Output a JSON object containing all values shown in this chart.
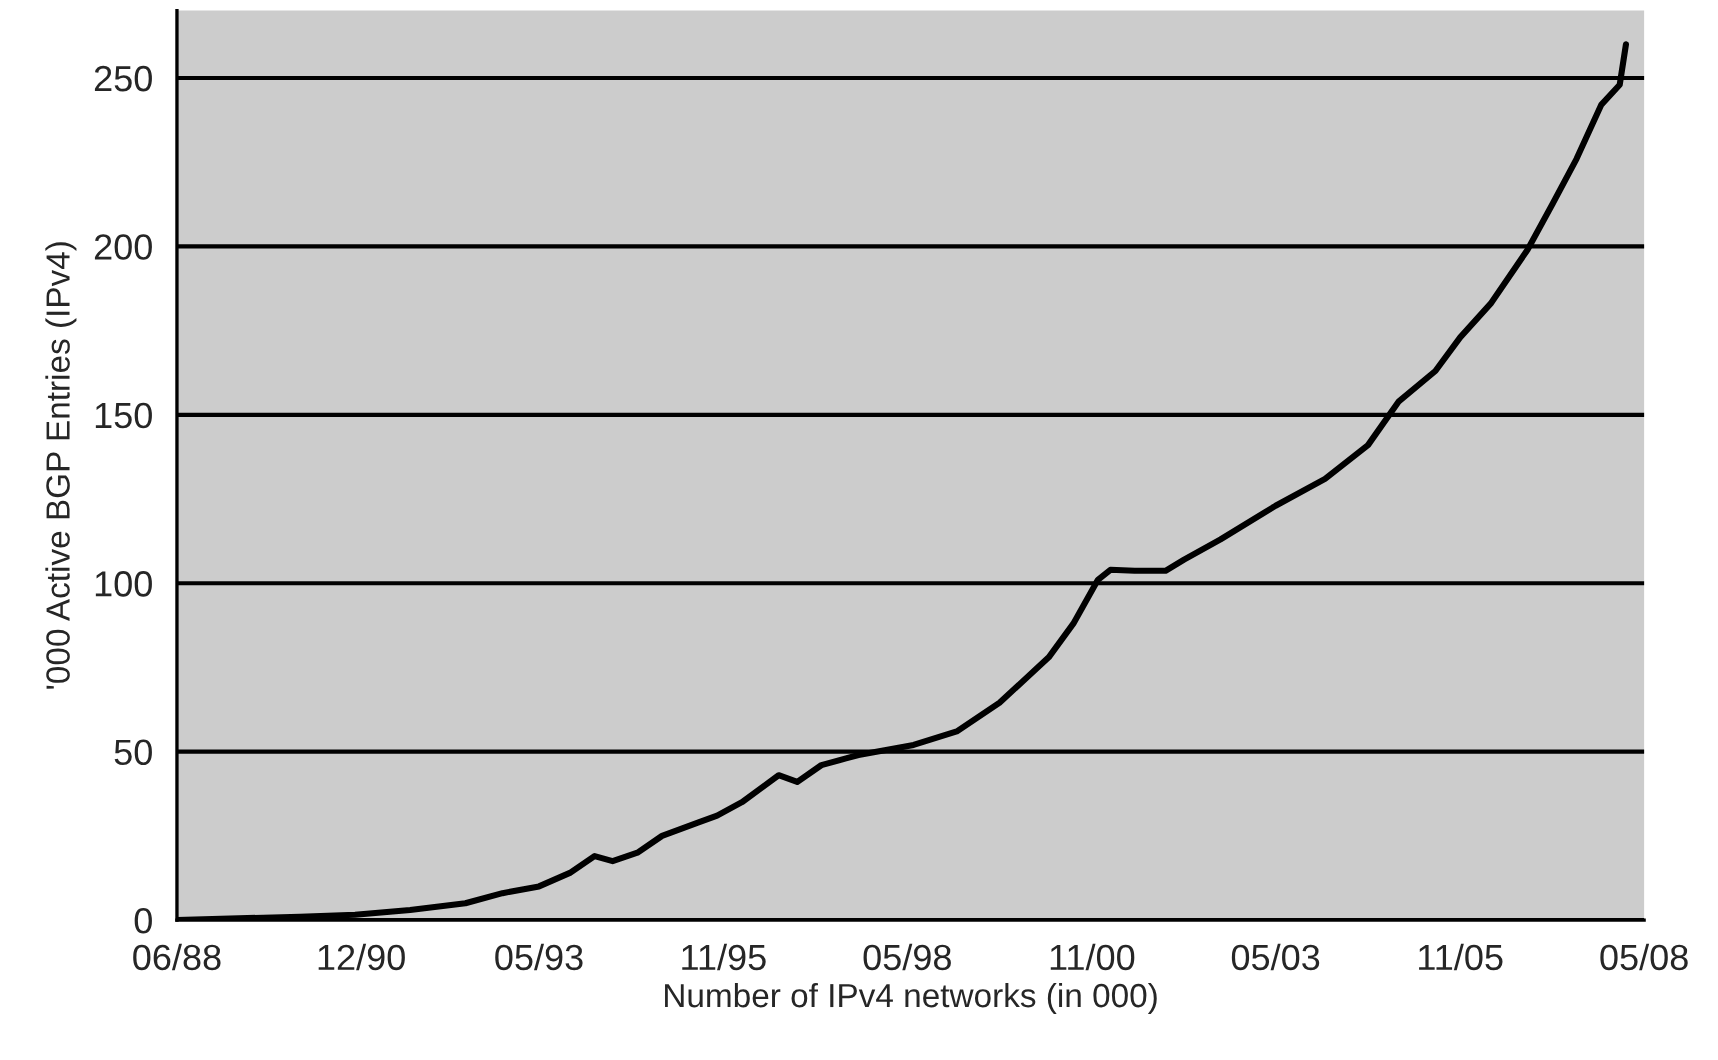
{
  "chart_data": {
    "type": "line",
    "xlabel": "Number of IPv4 networks (in 000)",
    "ylabel": "'000 Active BGP Entries (IPv4)",
    "x": [
      "1988-06",
      "1990-02",
      "1990-11",
      "1991-08",
      "1992-05",
      "1992-11",
      "1993-05",
      "1993-10",
      "1994-02",
      "1994-05",
      "1994-09",
      "1995-01",
      "1995-07",
      "1995-10",
      "1996-02",
      "1996-08",
      "1996-11",
      "1997-03",
      "1997-07",
      "1997-09",
      "1998-06",
      "1999-01",
      "1999-08",
      "2000-04",
      "2000-08",
      "2000-12",
      "2001-02",
      "2001-06",
      "2001-11",
      "2002-02",
      "2002-08",
      "2003-05",
      "2004-01",
      "2004-08",
      "2005-01",
      "2005-07",
      "2005-11",
      "2006-04",
      "2006-10",
      "2007-02",
      "2007-06",
      "2007-10",
      "2008-01",
      "2008-02"
    ],
    "series": [
      {
        "color": "#000000",
        "values": [
          0,
          1,
          1.6,
          3,
          5,
          8,
          10,
          14,
          19,
          17.5,
          20,
          25,
          29,
          31,
          35,
          43,
          41,
          46,
          48,
          49,
          52,
          56,
          64.5,
          78,
          88,
          101,
          104,
          103.7,
          103.7,
          107,
          113,
          123,
          131,
          141,
          154,
          163,
          173,
          183,
          199,
          212.5,
          226,
          242,
          248,
          260
        ]
      }
    ],
    "xlim": [
      "1988-06",
      "2008-05"
    ],
    "xticks": [
      {
        "value": "1988-06",
        "label": "06/88"
      },
      {
        "value": "1990-12",
        "label": "12/90"
      },
      {
        "value": "1993-05",
        "label": "05/93"
      },
      {
        "value": "1995-11",
        "label": "11/95"
      },
      {
        "value": "1998-05",
        "label": "05/98"
      },
      {
        "value": "2000-11",
        "label": "11/00"
      },
      {
        "value": "2003-05",
        "label": "05/03"
      },
      {
        "value": "2005-11",
        "label": "11/05"
      },
      {
        "value": "2008-05",
        "label": "05/08"
      }
    ],
    "ylim": [
      0,
      270
    ],
    "yticks": [
      0,
      50,
      100,
      150,
      200,
      250
    ],
    "grid": "y",
    "line_style": "solid",
    "marker": "none"
  }
}
